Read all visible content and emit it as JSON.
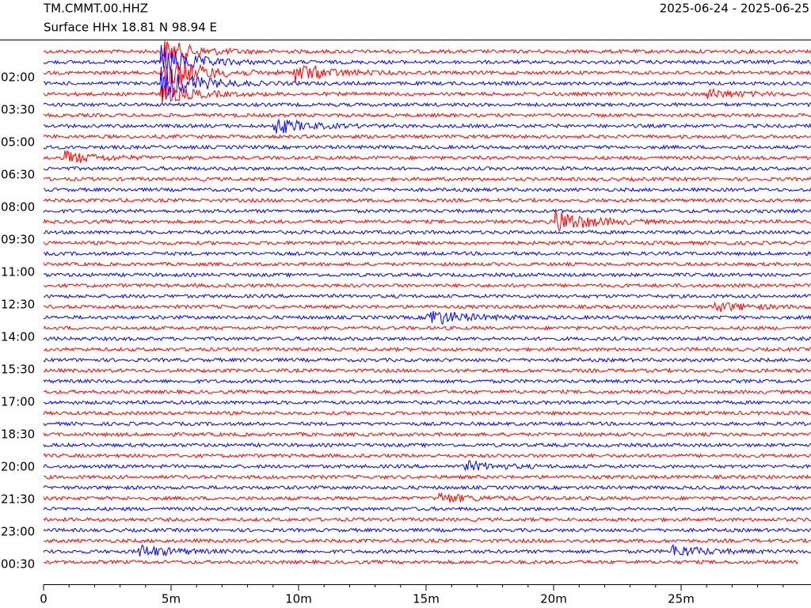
{
  "chart_data": {
    "type": "helicorder",
    "title": "TM.CMMT.00.HHZ",
    "subtitle": "Surface HHx  18.81 N 98.94 E",
    "date_range": "2025-06-24 - 2025-06-25",
    "row_labels": [
      "02:00",
      "03:30",
      "05:00",
      "06:30",
      "08:00",
      "09:30",
      "11:00",
      "12:30",
      "14:00",
      "15:30",
      "17:00",
      "18:30",
      "20:00",
      "21:30",
      "23:00",
      "00:30"
    ],
    "colors": [
      "#ff0000",
      "#0000ff"
    ],
    "xlim": [
      0,
      30
    ],
    "xticks": [
      0,
      {
        "value": 5,
        "label": "5m"
      },
      {
        "value": 10,
        "label": "10m"
      },
      {
        "value": 15,
        "label": "15m"
      },
      {
        "value": 20,
        "label": "20m"
      },
      {
        "value": 25,
        "label": "25m"
      }
    ]
  }
}
